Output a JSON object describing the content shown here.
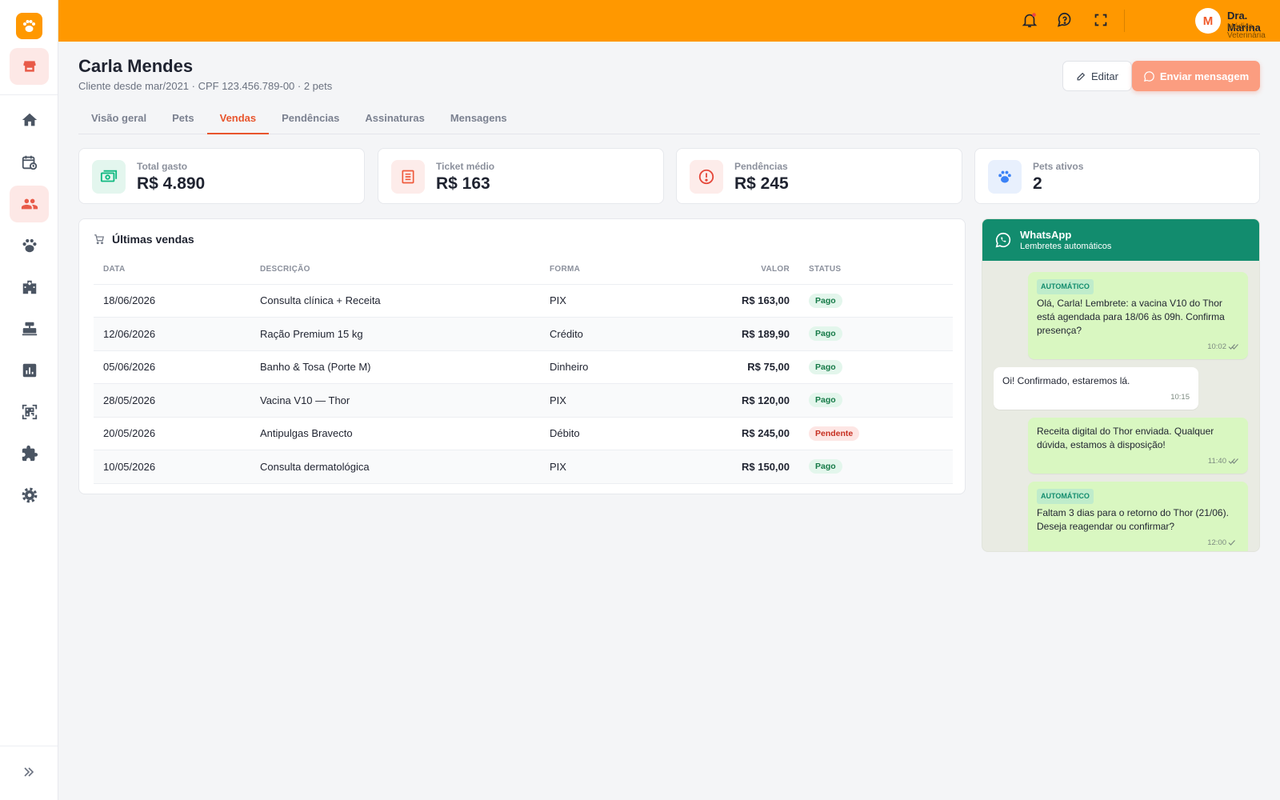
{
  "header": {
    "user_initial": "M",
    "user_name": "Dra. Marina",
    "user_role": "Médica Veterinária"
  },
  "client": {
    "name": "Carla Mendes",
    "subtitle": "Cliente desde mar/2021 · CPF 123.456.789-00 · 2 pets"
  },
  "actions": {
    "edit": "Editar",
    "send": "Enviar mensagem"
  },
  "tabs": [
    {
      "label": "Visão geral",
      "active": false
    },
    {
      "label": "Pets",
      "active": false
    },
    {
      "label": "Vendas",
      "active": true
    },
    {
      "label": "Pendências",
      "active": false
    },
    {
      "label": "Assinaturas",
      "active": false
    },
    {
      "label": "Mensagens",
      "active": false
    }
  ],
  "stats": [
    {
      "label": "Total gasto",
      "value": "R$ 4.890",
      "color": "#10b981",
      "bg": "#e3f6ee"
    },
    {
      "label": "Ticket médio",
      "value": "R$ 163",
      "color": "#ef5a3c",
      "bg": "#fdecea"
    },
    {
      "label": "Pendências",
      "value": "R$ 245",
      "color": "#e5483b",
      "bg": "#fdecea"
    },
    {
      "label": "Pets ativos",
      "value": "2",
      "color": "#3b82f6",
      "bg": "#e8f0fd"
    }
  ],
  "sales": {
    "title": "Últimas vendas",
    "columns": [
      "DATA",
      "DESCRIÇÃO",
      "FORMA",
      "VALOR",
      "STATUS"
    ],
    "rows": [
      {
        "date": "18/06/2026",
        "description": "Consulta clínica + Receita",
        "method": "PIX",
        "amount": "R$ 163,00",
        "status": "Pago",
        "status_tone": "ok"
      },
      {
        "date": "12/06/2026",
        "description": "Ração Premium 15 kg",
        "method": "Crédito",
        "amount": "R$ 189,90",
        "status": "Pago",
        "status_tone": "ok"
      },
      {
        "date": "05/06/2026",
        "description": "Banho & Tosa (Porte M)",
        "method": "Dinheiro",
        "amount": "R$ 75,00",
        "status": "Pago",
        "status_tone": "ok"
      },
      {
        "date": "28/05/2026",
        "description": "Vacina V10 — Thor",
        "method": "PIX",
        "amount": "R$ 120,00",
        "status": "Pago",
        "status_tone": "ok"
      },
      {
        "date": "20/05/2026",
        "description": "Antipulgas Bravecto",
        "method": "Débito",
        "amount": "R$ 245,00",
        "status": "Pendente",
        "status_tone": "warn"
      },
      {
        "date": "10/05/2026",
        "description": "Consulta dermatológica",
        "method": "PIX",
        "amount": "R$ 150,00",
        "status": "Pago",
        "status_tone": "ok"
      }
    ]
  },
  "whatsapp": {
    "title": "WhatsApp",
    "subtitle": "Lembretes automáticos",
    "messages": [
      {
        "outgoing": true,
        "tag": "AUTOMÁTICO",
        "text": "Olá, Carla! Lembrete: a vacina V10 do Thor está agendada para 18/06 às 09h. Confirma presença?",
        "time": "10:02",
        "checks": 2
      },
      {
        "outgoing": false,
        "text": "Oi! Confirmado, estaremos lá.",
        "time": "10:15"
      },
      {
        "outgoing": true,
        "text": "Receita digital do Thor enviada. Qualquer dúvida, estamos à disposição!",
        "time": "11:40",
        "checks": 2
      },
      {
        "outgoing": true,
        "tag": "AUTOMÁTICO",
        "text": "Faltam 3 dias para o retorno do Thor (21/06). Deseja reagendar ou confirmar?",
        "time": "12:00",
        "checks": 1
      }
    ]
  }
}
